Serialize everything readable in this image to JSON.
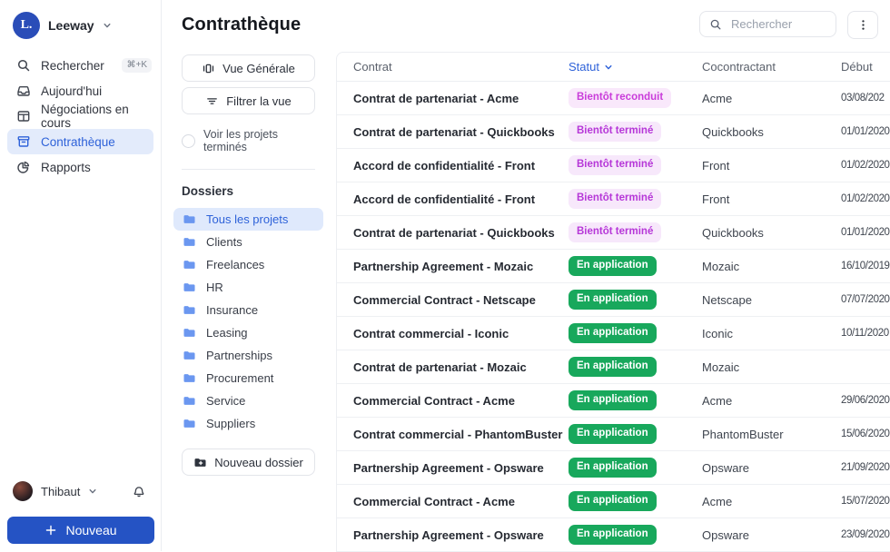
{
  "app": {
    "title": "Leeway"
  },
  "colors": {
    "accent_blue": "#2e62d9",
    "primary_button_blue": "#2553c4",
    "logo_blue": "#2a4db8",
    "selected_item_bg": "#e3ebfb",
    "folder_icon_blue": "#6b97f0",
    "badge_green_bg": "#18a85c",
    "badge_renew_text": "#c93cda",
    "badge_renew_bg": "#f9e8fb",
    "badge_ending_text": "#b637d8",
    "badge_ending_bg": "#f7e8fb"
  },
  "sidebar": {
    "logo_text": "L.",
    "workspace_name": "Leeway",
    "nav": [
      {
        "id": "search",
        "icon": "search",
        "label": "Rechercher",
        "shortcut": "⌘+K"
      },
      {
        "id": "today",
        "icon": "inbox",
        "label": "Aujourd'hui"
      },
      {
        "id": "negotiations",
        "icon": "board",
        "label": "Négociations en cours"
      },
      {
        "id": "contracts",
        "icon": "archive",
        "label": "Contrathèque",
        "active": true
      },
      {
        "id": "reports",
        "icon": "pie",
        "label": "Rapports"
      }
    ],
    "user_name": "Thibaut",
    "new_button_label": "Nouveau"
  },
  "panel": {
    "title": "Contrathèque",
    "view_button": "Vue Générale",
    "filter_button": "Filtrer la vue",
    "toggle_label": "Voir les projets terminés",
    "folders_title": "Dossiers",
    "folders": [
      "Tous les projets",
      "Clients",
      "Freelances",
      "HR",
      "Insurance",
      "Leasing",
      "Partnerships",
      "Procurement",
      "Service",
      "Suppliers"
    ],
    "active_folder": "Tous les projets",
    "new_folder_button": "Nouveau dossier"
  },
  "topbar": {
    "search_placeholder": "Rechercher"
  },
  "table": {
    "columns": [
      "Contrat",
      "Statut",
      "Cocontractant",
      "Début"
    ],
    "rows": [
      {
        "contract": "Contrat de partenariat - Acme",
        "status": "Bientôt reconduit",
        "status_type": "renew",
        "party": "Acme",
        "start": "03/08/202"
      },
      {
        "contract": "Contrat de partenariat - Quickbooks",
        "status": "Bientôt terminé",
        "status_type": "ending",
        "party": "Quickbooks",
        "start": "01/01/2020"
      },
      {
        "contract": "Accord de confidentialité - Front",
        "status": "Bientôt terminé",
        "status_type": "ending",
        "party": "Front",
        "start": "01/02/2020"
      },
      {
        "contract": "Accord de confidentialité - Front",
        "status": "Bientôt terminé",
        "status_type": "ending",
        "party": "Front",
        "start": "01/02/2020"
      },
      {
        "contract": "Contrat de partenariat - Quickbooks",
        "status": "Bientôt terminé",
        "status_type": "ending",
        "party": "Quickbooks",
        "start": "01/01/2020"
      },
      {
        "contract": "Partnership Agreement - Mozaic",
        "status": "En application",
        "status_type": "active",
        "party": "Mozaic",
        "start": "16/10/2019"
      },
      {
        "contract": "Commercial Contract - Netscape",
        "status": "En application",
        "status_type": "active",
        "party": "Netscape",
        "start": "07/07/2020"
      },
      {
        "contract": "Contrat commercial - Iconic",
        "status": "En application",
        "status_type": "active",
        "party": "Iconic",
        "start": "10/11/2020"
      },
      {
        "contract": "Contrat de partenariat - Mozaic",
        "status": "En application",
        "status_type": "active",
        "party": "Mozaic",
        "start": ""
      },
      {
        "contract": "Commercial Contract - Acme",
        "status": "En application",
        "status_type": "active",
        "party": "Acme",
        "start": "29/06/2020"
      },
      {
        "contract": "Contrat commercial - PhantomBuster",
        "status": "En application",
        "status_type": "active",
        "party": "PhantomBuster",
        "start": "15/06/2020"
      },
      {
        "contract": "Partnership Agreement - Opsware",
        "status": "En application",
        "status_type": "active",
        "party": "Opsware",
        "start": "21/09/2020"
      },
      {
        "contract": "Commercial Contract - Acme",
        "status": "En application",
        "status_type": "active",
        "party": "Acme",
        "start": "15/07/2020"
      },
      {
        "contract": "Partnership Agreement - Opsware",
        "status": "En application",
        "status_type": "active",
        "party": "Opsware",
        "start": "23/09/2020"
      }
    ]
  }
}
